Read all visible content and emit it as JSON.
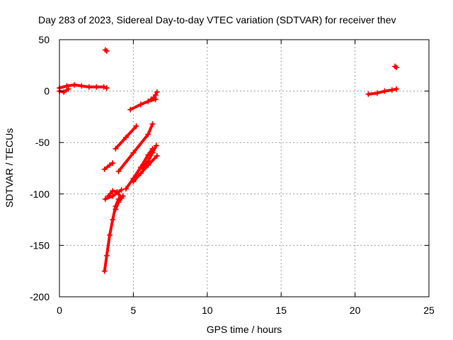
{
  "chart_data": {
    "type": "scatter",
    "title": "Day 283 of 2023, Sidereal Day-to-day VTEC variation (SDTVAR) for receiver thev",
    "xlabel": "GPS time / hours",
    "ylabel": "SDTVAR / TECUs",
    "xlim": [
      0,
      25
    ],
    "ylim": [
      -200,
      50
    ],
    "xticks": [
      0,
      5,
      10,
      15,
      20,
      25
    ],
    "yticks": [
      -200,
      -150,
      -100,
      -50,
      0,
      50
    ],
    "grid": true,
    "marker": "plus",
    "color": "#ff0000",
    "series": [
      {
        "x": [
          0.0,
          0.5,
          1.0,
          1.5,
          2.0,
          2.5,
          3.0,
          3.2
        ],
        "y": [
          3,
          5,
          6,
          5,
          4,
          4,
          4,
          3
        ]
      },
      {
        "x": [
          0.0,
          0.3,
          0.6
        ],
        "y": [
          0,
          -1,
          2
        ]
      },
      {
        "x": [
          3.1,
          3.2
        ],
        "y": [
          40,
          39
        ]
      },
      {
        "x": [
          3.05,
          3.2,
          3.4,
          3.6,
          3.8,
          4.0
        ],
        "y": [
          -175,
          -160,
          -140,
          -125,
          -112,
          -105
        ]
      },
      {
        "x": [
          3.1,
          3.6,
          4.2
        ],
        "y": [
          -105,
          -102,
          -96
        ]
      },
      {
        "x": [
          3.3,
          3.6,
          3.9,
          4.2
        ],
        "y": [
          -102,
          -97,
          -98,
          -104
        ]
      },
      {
        "x": [
          3.8,
          4.0,
          4.3
        ],
        "y": [
          -115,
          -108,
          -102
        ]
      },
      {
        "x": [
          3.05,
          3.4,
          3.6
        ],
        "y": [
          -76,
          -72,
          -70
        ]
      },
      {
        "x": [
          3.8,
          4.5,
          5.2
        ],
        "y": [
          -56,
          -45,
          -34
        ]
      },
      {
        "x": [
          4.0,
          5.0,
          6.0,
          6.3
        ],
        "y": [
          -78,
          -60,
          -42,
          -32
        ]
      },
      {
        "x": [
          4.5,
          5.0,
          5.5,
          6.0,
          6.3
        ],
        "y": [
          -95,
          -85,
          -74,
          -62,
          -56
        ]
      },
      {
        "x": [
          5.0,
          5.5,
          6.0,
          6.6
        ],
        "y": [
          -88,
          -80,
          -72,
          -63
        ]
      },
      {
        "x": [
          5.6,
          6.0,
          6.3,
          6.55
        ],
        "y": [
          -75,
          -68,
          -60,
          -53
        ]
      },
      {
        "x": [
          4.8,
          5.5,
          6.0,
          6.5
        ],
        "y": [
          -18,
          -13,
          -10,
          -8
        ]
      },
      {
        "x": [
          6.2,
          6.4,
          6.5,
          6.6
        ],
        "y": [
          -8,
          -6,
          -4,
          -1
        ]
      },
      {
        "x": [
          20.9,
          21.5,
          22.0,
          22.5,
          22.8
        ],
        "y": [
          -3,
          -2,
          0,
          1,
          2
        ]
      },
      {
        "x": [
          22.7,
          22.8
        ],
        "y": [
          24,
          23
        ]
      }
    ]
  }
}
